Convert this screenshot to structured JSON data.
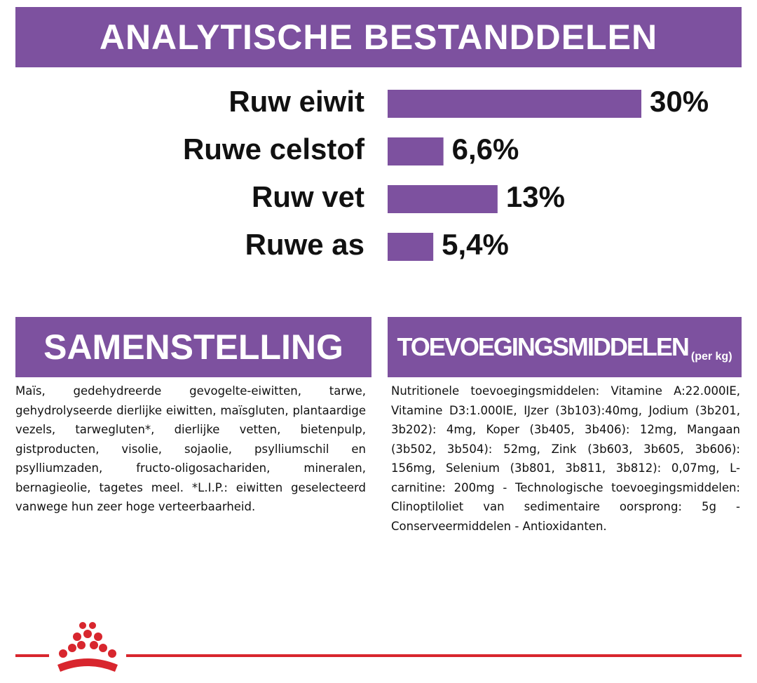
{
  "header": {
    "title": "ANALYTISCHE BESTANDDELEN"
  },
  "chart_data": {
    "type": "bar",
    "orientation": "horizontal",
    "categories": [
      "Ruw eiwit",
      "Ruwe celstof",
      "Ruw vet",
      "Ruwe as"
    ],
    "values": [
      30,
      6.6,
      13,
      5.4
    ],
    "value_labels": [
      "30%",
      "6,6%",
      "13%",
      "5,4%"
    ],
    "color": "#7d519f"
  },
  "composition": {
    "title": "SAMENSTELLING",
    "text": "Maïs, gedehydreerde gevogelte-eiwitten, tarwe, gehydrolyseerde dierlijke eiwitten, maïsgluten, plantaardige vezels, tarwegluten*, dierlijke vetten, bietenpulp, gistproducten, visolie, sojaolie, psylliumschil en psylliumzaden, fructo-oligosachariden, mineralen, bernagieolie, tagetes meel. *L.I.P.: eiwitten geselecteerd vanwege hun zeer hoge verteerbaarheid."
  },
  "additives": {
    "title": "TOEVOEGINGSMIDDELEN",
    "unit": "(per kg)",
    "text": "Nutritionele toevoegingsmiddelen: Vitamine A:22.000IE, Vitamine D3:1.000IE, IJzer (3b103):40mg, Jodium (3b201, 3b202): 4mg, Koper (3b405, 3b406): 12mg, Mangaan (3b502, 3b504): 52mg, Zink (3b603, 3b605, 3b606): 156mg, Selenium (3b801, 3b811, 3b812): 0,07mg, L-carnitine: 200mg - Technologische toevoegingsmiddelen: Clinoptiloliet van sedimentaire oorsprong: 5g - Conserveermiddelen - Antioxidanten."
  }
}
